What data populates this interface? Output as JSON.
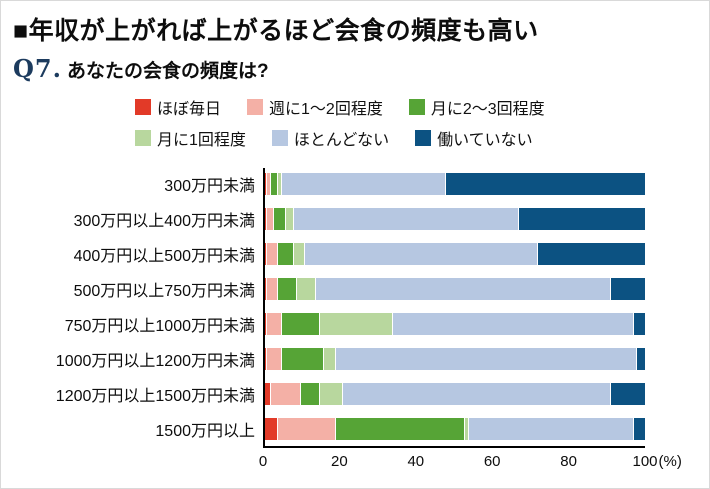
{
  "header": {
    "title": "■年収が上がれば上がるほど会食の頻度も高い",
    "question_label": "Q7.",
    "question_text": "あなたの会食の頻度は?"
  },
  "chart_data": {
    "type": "bar",
    "orientation": "horizontal",
    "stacked": true,
    "title": "年収が上がれば上がるほど会食の頻度も高い",
    "subtitle": "Q7. あなたの会食の頻度は?",
    "legend_position": "top",
    "grid": false,
    "xlim": [
      0,
      100
    ],
    "xticks": [
      0,
      20,
      40,
      60,
      80,
      100
    ],
    "x_unit": "(%)",
    "categories": [
      "300万円未満",
      "300万円以上400万円未満",
      "400万円以上500万円未満",
      "500万円以上750万円未満",
      "750万円以上1000万円未満",
      "1000万円以上1200万円未満",
      "1200万円以上1500万円未満",
      "1500万円以上"
    ],
    "series": [
      {
        "name": "ほぼ毎日",
        "color": "#e23a28",
        "values": [
          1,
          1,
          1,
          1,
          1,
          1,
          2,
          4
        ]
      },
      {
        "name": "週に1〜2回程度",
        "color": "#f4b0a6",
        "values": [
          1,
          2,
          3,
          3,
          4,
          4,
          8,
          15
        ]
      },
      {
        "name": "月に2〜3回程度",
        "color": "#56a436",
        "values": [
          2,
          3,
          4,
          5,
          10,
          11,
          5,
          34
        ]
      },
      {
        "name": "月に1回程度",
        "color": "#b8d79e",
        "values": [
          1,
          2,
          3,
          5,
          19,
          3,
          6,
          1
        ]
      },
      {
        "name": "ほとんどない",
        "color": "#b6c7e1",
        "values": [
          43,
          59,
          61,
          77,
          63,
          79,
          70,
          43
        ]
      },
      {
        "name": "働いていない",
        "color": "#0c5282",
        "values": [
          52,
          33,
          28,
          9,
          3,
          2,
          9,
          3
        ]
      }
    ]
  }
}
